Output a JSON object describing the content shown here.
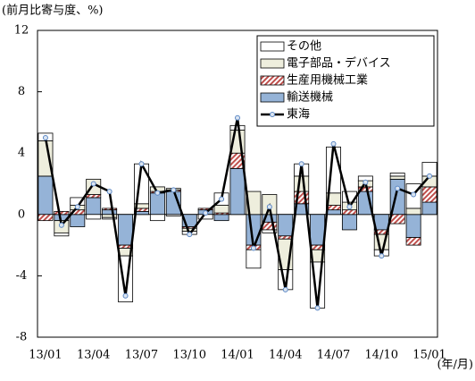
{
  "chart_data": {
    "type": "stacked-bar-line",
    "y_label": "(前月比寄与度、%)",
    "x_label": "(年/月)",
    "categories": [
      "13/01",
      null,
      null,
      "13/04",
      null,
      null,
      "13/07",
      null,
      null,
      "13/10",
      null,
      null,
      "14/01",
      null,
      null,
      "14/04",
      null,
      null,
      "14/07",
      null,
      null,
      "14/10",
      null,
      null,
      "15/01"
    ],
    "ylim": [
      -8,
      12
    ],
    "yticks": [
      12,
      8,
      4,
      0,
      -4,
      -8
    ],
    "legend": "upper right",
    "series": [
      {
        "name": "その他",
        "kind": "bar",
        "color": "#ffffff",
        "values": [
          0.5,
          -0.2,
          0.5,
          -0.3,
          -0.1,
          -3.0,
          2.6,
          -0.4,
          -0.1,
          -0.2,
          -0.3,
          0.8,
          0.3,
          -1.2,
          -0.2,
          -1.3,
          0.8,
          -3.0,
          3.0,
          0.7,
          0.3,
          -0.4,
          0.2,
          1.6,
          0.9
        ]
      },
      {
        "name": "電子部品・デバイス",
        "kind": "bar",
        "color": "#eeeedd",
        "values": [
          2.3,
          -0.8,
          0.3,
          1.0,
          -0.2,
          -0.5,
          0.3,
          0.3,
          0.1,
          -0.2,
          0,
          0.5,
          1.5,
          1.5,
          1.3,
          -2.0,
          1.0,
          -0.8,
          0.8,
          0.5,
          0.4,
          -1.0,
          0.2,
          0.4,
          0.7
        ]
      },
      {
        "name": "生産用機械工業",
        "kind": "hatched-bar",
        "color": "#c0504d",
        "values": [
          -0.4,
          0.2,
          0.3,
          0.2,
          0.1,
          -0.2,
          0.2,
          0.1,
          0.1,
          -0.1,
          0.1,
          0.1,
          1.0,
          -0.3,
          -0.5,
          -0.2,
          0.8,
          -0.3,
          0.3,
          0.3,
          0.3,
          -0.3,
          -0.6,
          -0.5,
          1.0
        ]
      },
      {
        "name": "輸送機械",
        "kind": "bar",
        "color": "#95b3d7",
        "values": [
          2.5,
          -0.4,
          -0.8,
          1.1,
          0.3,
          -2.0,
          0.2,
          1.4,
          1.5,
          -0.8,
          0.3,
          -0.4,
          3.0,
          -2.0,
          -0.5,
          -1.4,
          0.7,
          -2.0,
          0.3,
          -1.0,
          1.5,
          -1.0,
          2.3,
          -1.5,
          0.8
        ]
      },
      {
        "name": "東海",
        "kind": "line",
        "color": "#000000",
        "values": [
          5.0,
          -0.7,
          0.5,
          2.0,
          1.5,
          -5.3,
          3.3,
          1.4,
          1.6,
          -1.3,
          0.1,
          1.0,
          6.3,
          -2.2,
          0.5,
          -4.9,
          3.3,
          -6.1,
          4.6,
          0.5,
          2.1,
          -2.7,
          1.7,
          1.3,
          2.5
        ]
      }
    ]
  }
}
